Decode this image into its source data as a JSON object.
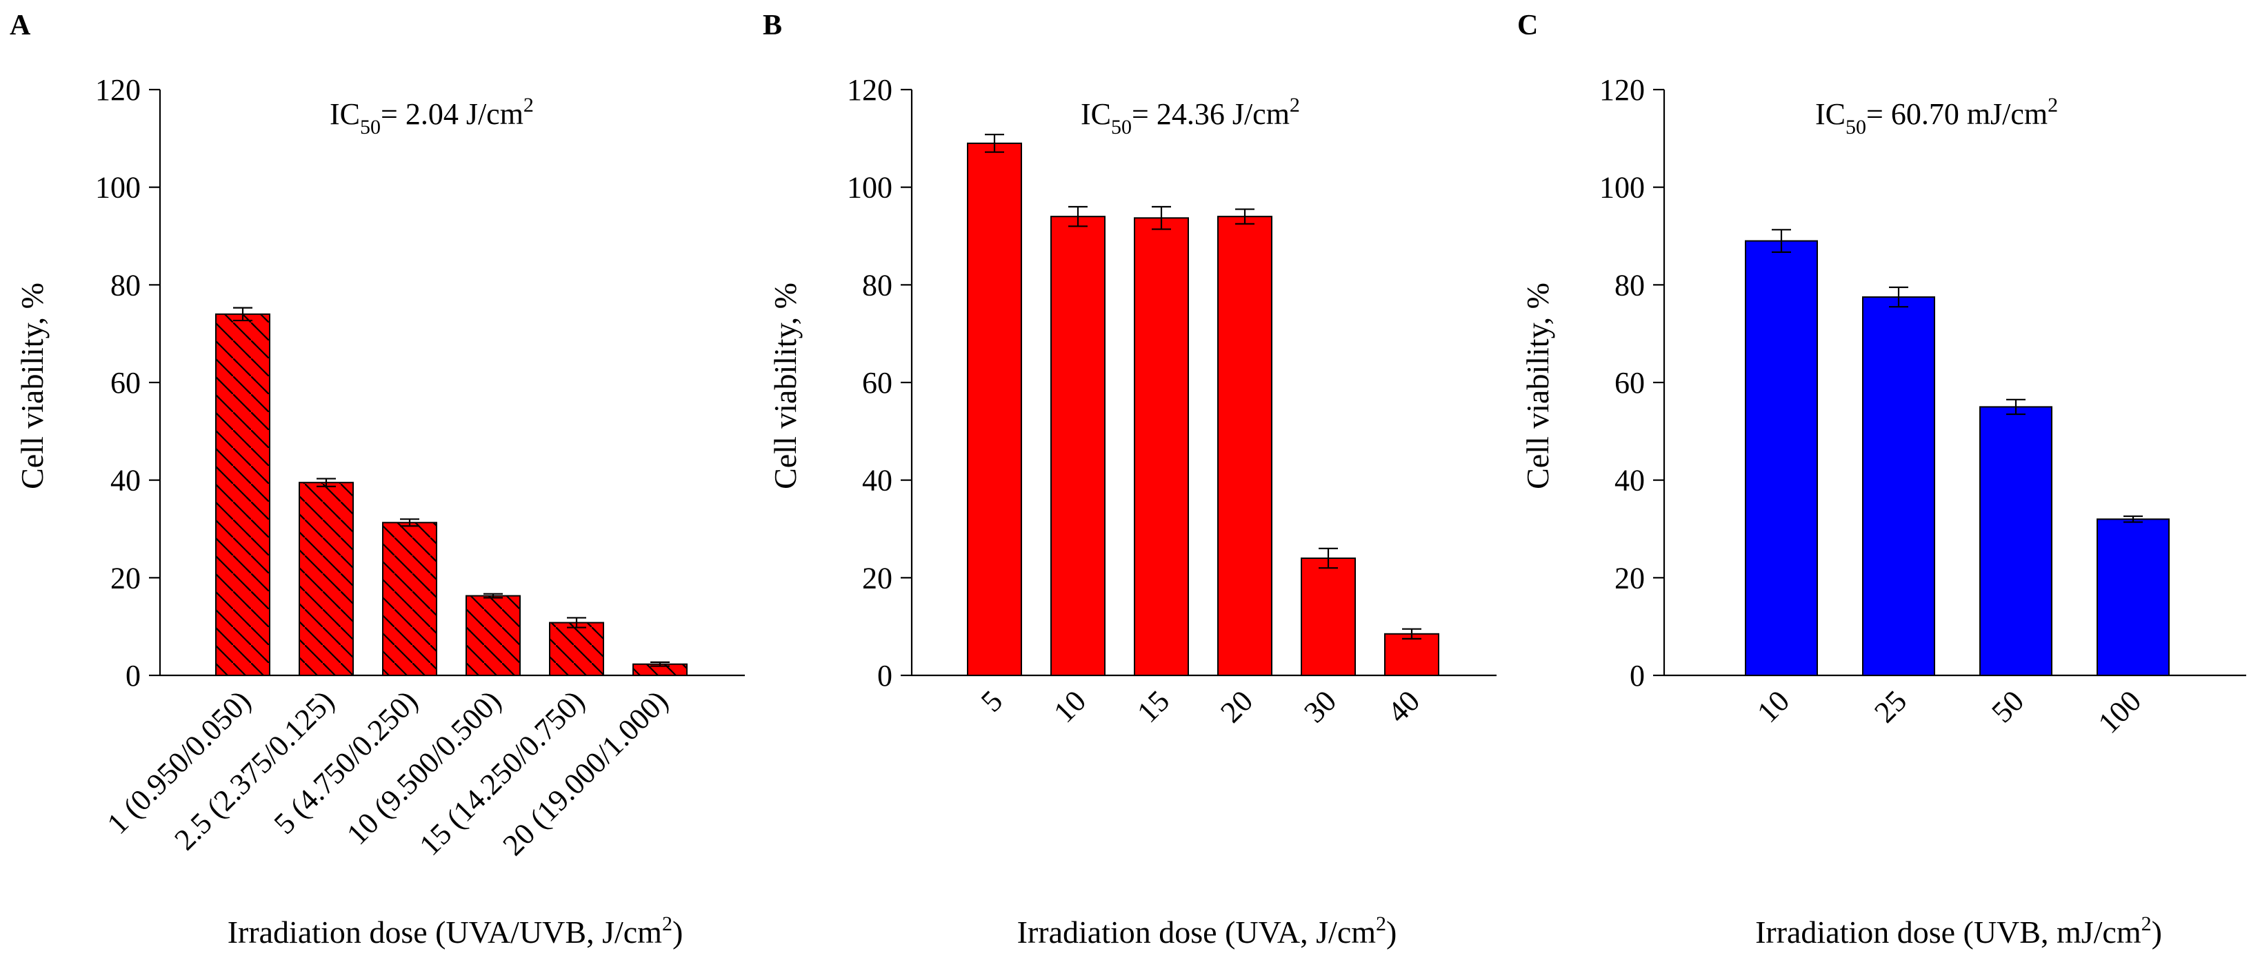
{
  "chart_data": [
    {
      "panel": "A",
      "type": "bar",
      "categories": [
        "1 (0.950/0.050)",
        "2.5 (2.375/0.125)",
        "5 (4.750/0.250)",
        "10 (9.500/0.500)",
        "15 (14.250/0.750)",
        "20 (19.000/1.000)"
      ],
      "values": [
        74,
        39.5,
        31.3,
        16.3,
        10.8,
        2.3
      ],
      "errors": [
        1.3,
        0.8,
        0.7,
        0.4,
        1.0,
        0.4
      ],
      "ylabel": "Cell viability, %",
      "xlabel_main": "Irradiation dose (UVA/UVB, J/cm",
      "xlabel_sup": "2",
      "xlabel_close": ")",
      "ic50_prefix": "IC",
      "ic50_sub": "50",
      "ic50_value": "= 2.04 J/cm",
      "ic50_sup": "2",
      "ylim": [
        0,
        120
      ],
      "yticks": [
        0,
        20,
        40,
        60,
        80,
        100,
        120
      ],
      "color": "#ff0000",
      "hatched": true,
      "rotate_labels": true
    },
    {
      "panel": "B",
      "type": "bar",
      "categories": [
        "5",
        "10",
        "15",
        "20",
        "30",
        "40"
      ],
      "values": [
        109,
        94,
        93.7,
        94,
        24,
        8.5
      ],
      "errors": [
        1.8,
        2.0,
        2.3,
        1.5,
        2.0,
        1.0
      ],
      "ylabel": "Cell viability, %",
      "xlabel_main": "Irradiation dose (UVA, J/cm",
      "xlabel_sup": "2",
      "xlabel_close": ")",
      "ic50_prefix": "IC",
      "ic50_sub": "50",
      "ic50_value": "= 24.36 J/cm",
      "ic50_sup": "2",
      "ylim": [
        0,
        120
      ],
      "yticks": [
        0,
        20,
        40,
        60,
        80,
        100,
        120
      ],
      "color": "#ff0000",
      "hatched": false,
      "rotate_labels": true
    },
    {
      "panel": "C",
      "type": "bar",
      "categories": [
        "10",
        "25",
        "50",
        "100"
      ],
      "values": [
        89,
        77.5,
        55,
        32
      ],
      "errors": [
        2.3,
        2.0,
        1.5,
        0.6
      ],
      "ylabel": "Cell viability, %",
      "xlabel_main": "Irradiation dose (UVB, mJ/cm",
      "xlabel_sup": "2",
      "xlabel_close": ")",
      "ic50_prefix": "IC",
      "ic50_sub": "50",
      "ic50_value": "= 60.70 mJ/cm",
      "ic50_sup": "2",
      "ylim": [
        0,
        120
      ],
      "yticks": [
        0,
        20,
        40,
        60,
        80,
        100,
        120
      ],
      "color": "#0000ff",
      "hatched": false,
      "rotate_labels": true
    }
  ],
  "colors": {
    "axis": "#000000",
    "bar_edge": "#000000",
    "hatch_line": "#000000"
  }
}
